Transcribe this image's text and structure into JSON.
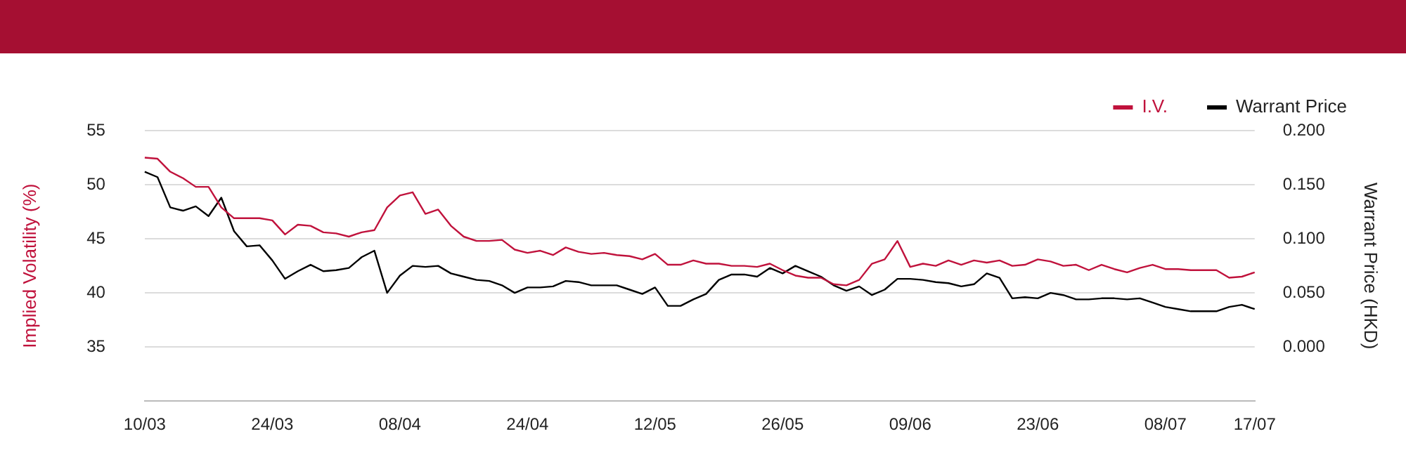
{
  "chart_data": {
    "type": "line",
    "ylabel": "Implied Volatility (%)",
    "y2label": "Warrant Price (HKD)",
    "legend": "top right",
    "grid": "y",
    "marker": "none",
    "line_style": "solid",
    "categories": [
      "10/03",
      null,
      null,
      null,
      null,
      null,
      null,
      null,
      null,
      null,
      "24/03",
      null,
      null,
      null,
      null,
      null,
      null,
      null,
      null,
      null,
      "08/04",
      null,
      null,
      null,
      null,
      null,
      null,
      null,
      null,
      null,
      "24/04",
      null,
      null,
      null,
      null,
      null,
      null,
      null,
      null,
      null,
      "12/05",
      null,
      null,
      null,
      null,
      null,
      null,
      null,
      null,
      null,
      "26/05",
      null,
      null,
      null,
      null,
      null,
      null,
      null,
      null,
      null,
      "09/06",
      null,
      null,
      null,
      null,
      null,
      null,
      null,
      null,
      null,
      "23/06",
      null,
      null,
      null,
      null,
      null,
      null,
      null,
      null,
      null,
      "08/07",
      null,
      null,
      null,
      null,
      null,
      null,
      "17/07"
    ],
    "ylim": [
      30,
      55
    ],
    "yticks": [
      35,
      40,
      45,
      50,
      55
    ],
    "y2lim": [
      -0.05,
      0.2
    ],
    "y2ticks": [
      {
        "value": 0,
        "label": "0.000"
      },
      {
        "value": 0.05,
        "label": "0.050"
      },
      {
        "value": 0.1,
        "label": "0.100"
      },
      {
        "value": 0.15,
        "label": "0.150"
      },
      {
        "value": 0.2,
        "label": "0.200"
      }
    ],
    "series": [
      {
        "name": "I.V.",
        "color": "#c0123c",
        "values": [
          52.5,
          52.4,
          51.2,
          50.6,
          49.8,
          49.8,
          47.9,
          46.9,
          46.9,
          46.9,
          46.7,
          45.4,
          46.3,
          46.2,
          45.6,
          45.5,
          45.2,
          45.6,
          45.8,
          47.9,
          49.0,
          49.3,
          47.3,
          47.7,
          46.2,
          45.2,
          44.8,
          44.8,
          44.9,
          44.0,
          43.7,
          43.9,
          43.5,
          44.2,
          43.8,
          43.6,
          43.7,
          43.5,
          43.4,
          43.1,
          43.6,
          42.6,
          42.6,
          43.0,
          42.7,
          42.7,
          42.5,
          42.5,
          42.4,
          42.7,
          42.1,
          41.6,
          41.4,
          41.4,
          40.8,
          40.7,
          41.2,
          42.7,
          43.1,
          44.8,
          42.4,
          42.7,
          42.5,
          43.0,
          42.6,
          43.0,
          42.8,
          43.0,
          42.5,
          42.6,
          43.1,
          42.9,
          42.5,
          42.6,
          42.1,
          42.6,
          42.2,
          41.9,
          42.3,
          42.6,
          42.2,
          42.2,
          42.1,
          42.1,
          42.1,
          41.4,
          41.5,
          41.9
        ]
      },
      {
        "name": "Warrant Price",
        "color": "#000000",
        "axis": "y2",
        "values": [
          0.162,
          0.157,
          0.129,
          0.126,
          0.13,
          0.121,
          0.138,
          0.107,
          0.093,
          0.094,
          0.08,
          0.063,
          0.07,
          0.076,
          0.07,
          0.071,
          0.073,
          0.083,
          0.089,
          0.05,
          0.066,
          0.075,
          0.074,
          0.075,
          0.068,
          0.065,
          0.062,
          0.061,
          0.057,
          0.05,
          0.055,
          0.055,
          0.056,
          0.061,
          0.06,
          0.057,
          0.057,
          0.057,
          0.053,
          0.049,
          0.055,
          0.038,
          0.038,
          0.044,
          0.049,
          0.062,
          0.067,
          0.067,
          0.065,
          0.073,
          0.068,
          0.075,
          0.07,
          0.065,
          0.057,
          0.052,
          0.056,
          0.048,
          0.053,
          0.063,
          0.063,
          0.062,
          0.06,
          0.059,
          0.056,
          0.058,
          0.068,
          0.064,
          0.045,
          0.046,
          0.045,
          0.05,
          0.048,
          0.044,
          0.044,
          0.045,
          0.045,
          0.044,
          0.045,
          0.041,
          0.037,
          0.035,
          0.033,
          0.033,
          0.033,
          0.037,
          0.039,
          0.035
        ]
      }
    ]
  }
}
